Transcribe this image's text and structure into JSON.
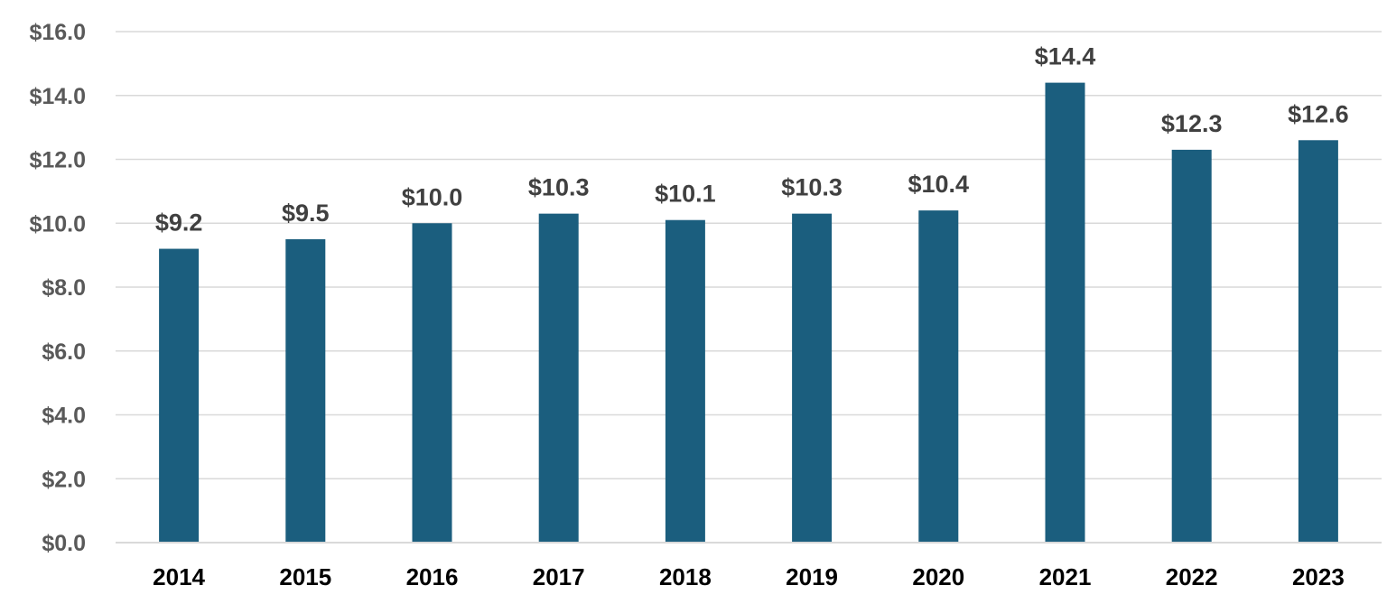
{
  "chart_data": {
    "type": "bar",
    "categories": [
      "2014",
      "2015",
      "2016",
      "2017",
      "2018",
      "2019",
      "2020",
      "2021",
      "2022",
      "2023"
    ],
    "values": [
      9.2,
      9.5,
      10.0,
      10.3,
      10.1,
      10.3,
      10.4,
      14.4,
      12.3,
      12.6
    ],
    "data_labels": [
      "$9.2",
      "$9.5",
      "$10.0",
      "$10.3",
      "$10.1",
      "$10.3",
      "$10.4",
      "$14.4",
      "$12.3",
      "$12.6"
    ],
    "y_ticks": [
      0,
      2,
      4,
      6,
      8,
      10,
      12,
      14,
      16
    ],
    "y_tick_labels": [
      "$0.0",
      "$2.0",
      "$4.0",
      "$6.0",
      "$8.0",
      "$10.0",
      "$12.0",
      "$14.0",
      "$16.0"
    ],
    "ylim": [
      0,
      16
    ],
    "grid": true,
    "legend": "none",
    "colors": {
      "bar": "#1b5e7e"
    }
  }
}
